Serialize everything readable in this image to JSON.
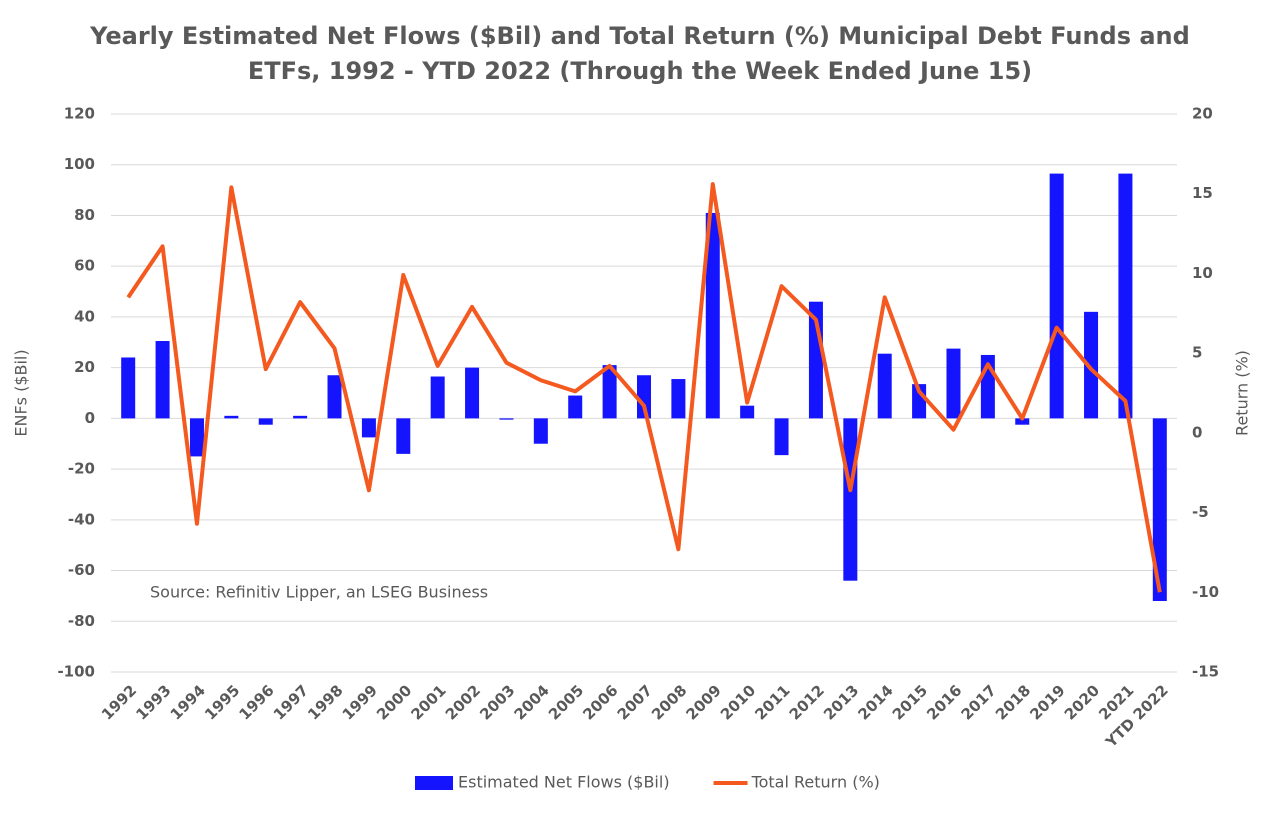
{
  "chart_data": {
    "type": "bar-line",
    "title": [
      "Yearly Estimated Net Flows ($Bil) and Total Return (%) Municipal Debt Funds and",
      "ETFs, 1992 - YTD 2022 (Through the Week Ended June 15)"
    ],
    "ylabel": "ENFs ($Bil)",
    "y2label": "Return (%)",
    "annotation": "Source: Refinitiv Lipper, an LSEG Business",
    "categories": [
      "1992",
      "1993",
      "1994",
      "1995",
      "1996",
      "1997",
      "1998",
      "1999",
      "2000",
      "2001",
      "2002",
      "2003",
      "2004",
      "2005",
      "2006",
      "2007",
      "2008",
      "2009",
      "2010",
      "2011",
      "2012",
      "2013",
      "2014",
      "2015",
      "2016",
      "2017",
      "2018",
      "2019",
      "2020",
      "2021",
      "YTD 2022"
    ],
    "series": [
      {
        "name": "Estimated Net Flows ($Bil)",
        "type": "bar",
        "color": "#1414ff",
        "values": [
          24,
          30.5,
          -15,
          1,
          -2.5,
          1,
          17,
          -7.5,
          -14,
          16.5,
          20,
          -0.5,
          -10,
          9,
          21,
          17,
          15.5,
          81,
          5,
          -14.5,
          46,
          -64,
          25.5,
          13.5,
          27.5,
          25,
          -2.5,
          96.5,
          42,
          96.5,
          -72
        ]
      },
      {
        "name": "Total Return (%)",
        "type": "line",
        "axis": "y2",
        "color": "#f4591f",
        "values": [
          8.5,
          11.7,
          -5.7,
          15.4,
          4.0,
          8.2,
          5.3,
          -3.6,
          9.9,
          4.2,
          7.9,
          4.4,
          3.3,
          2.6,
          4.2,
          1.7,
          -7.3,
          15.6,
          1.9,
          9.2,
          7.1,
          -3.6,
          8.5,
          2.6,
          0.2,
          4.3,
          0.9,
          6.6,
          4.0,
          2.0,
          -10
        ]
      }
    ],
    "ylim": [
      -100,
      120
    ],
    "yticks": [
      -100,
      -80,
      -60,
      -40,
      -20,
      0,
      20,
      40,
      60,
      80,
      100,
      120
    ],
    "y2lim": [
      -15,
      20
    ],
    "y2ticks": [
      -15,
      -10,
      -5,
      0,
      5,
      10,
      15,
      20
    ],
    "grid": true,
    "legend": "bottom"
  }
}
